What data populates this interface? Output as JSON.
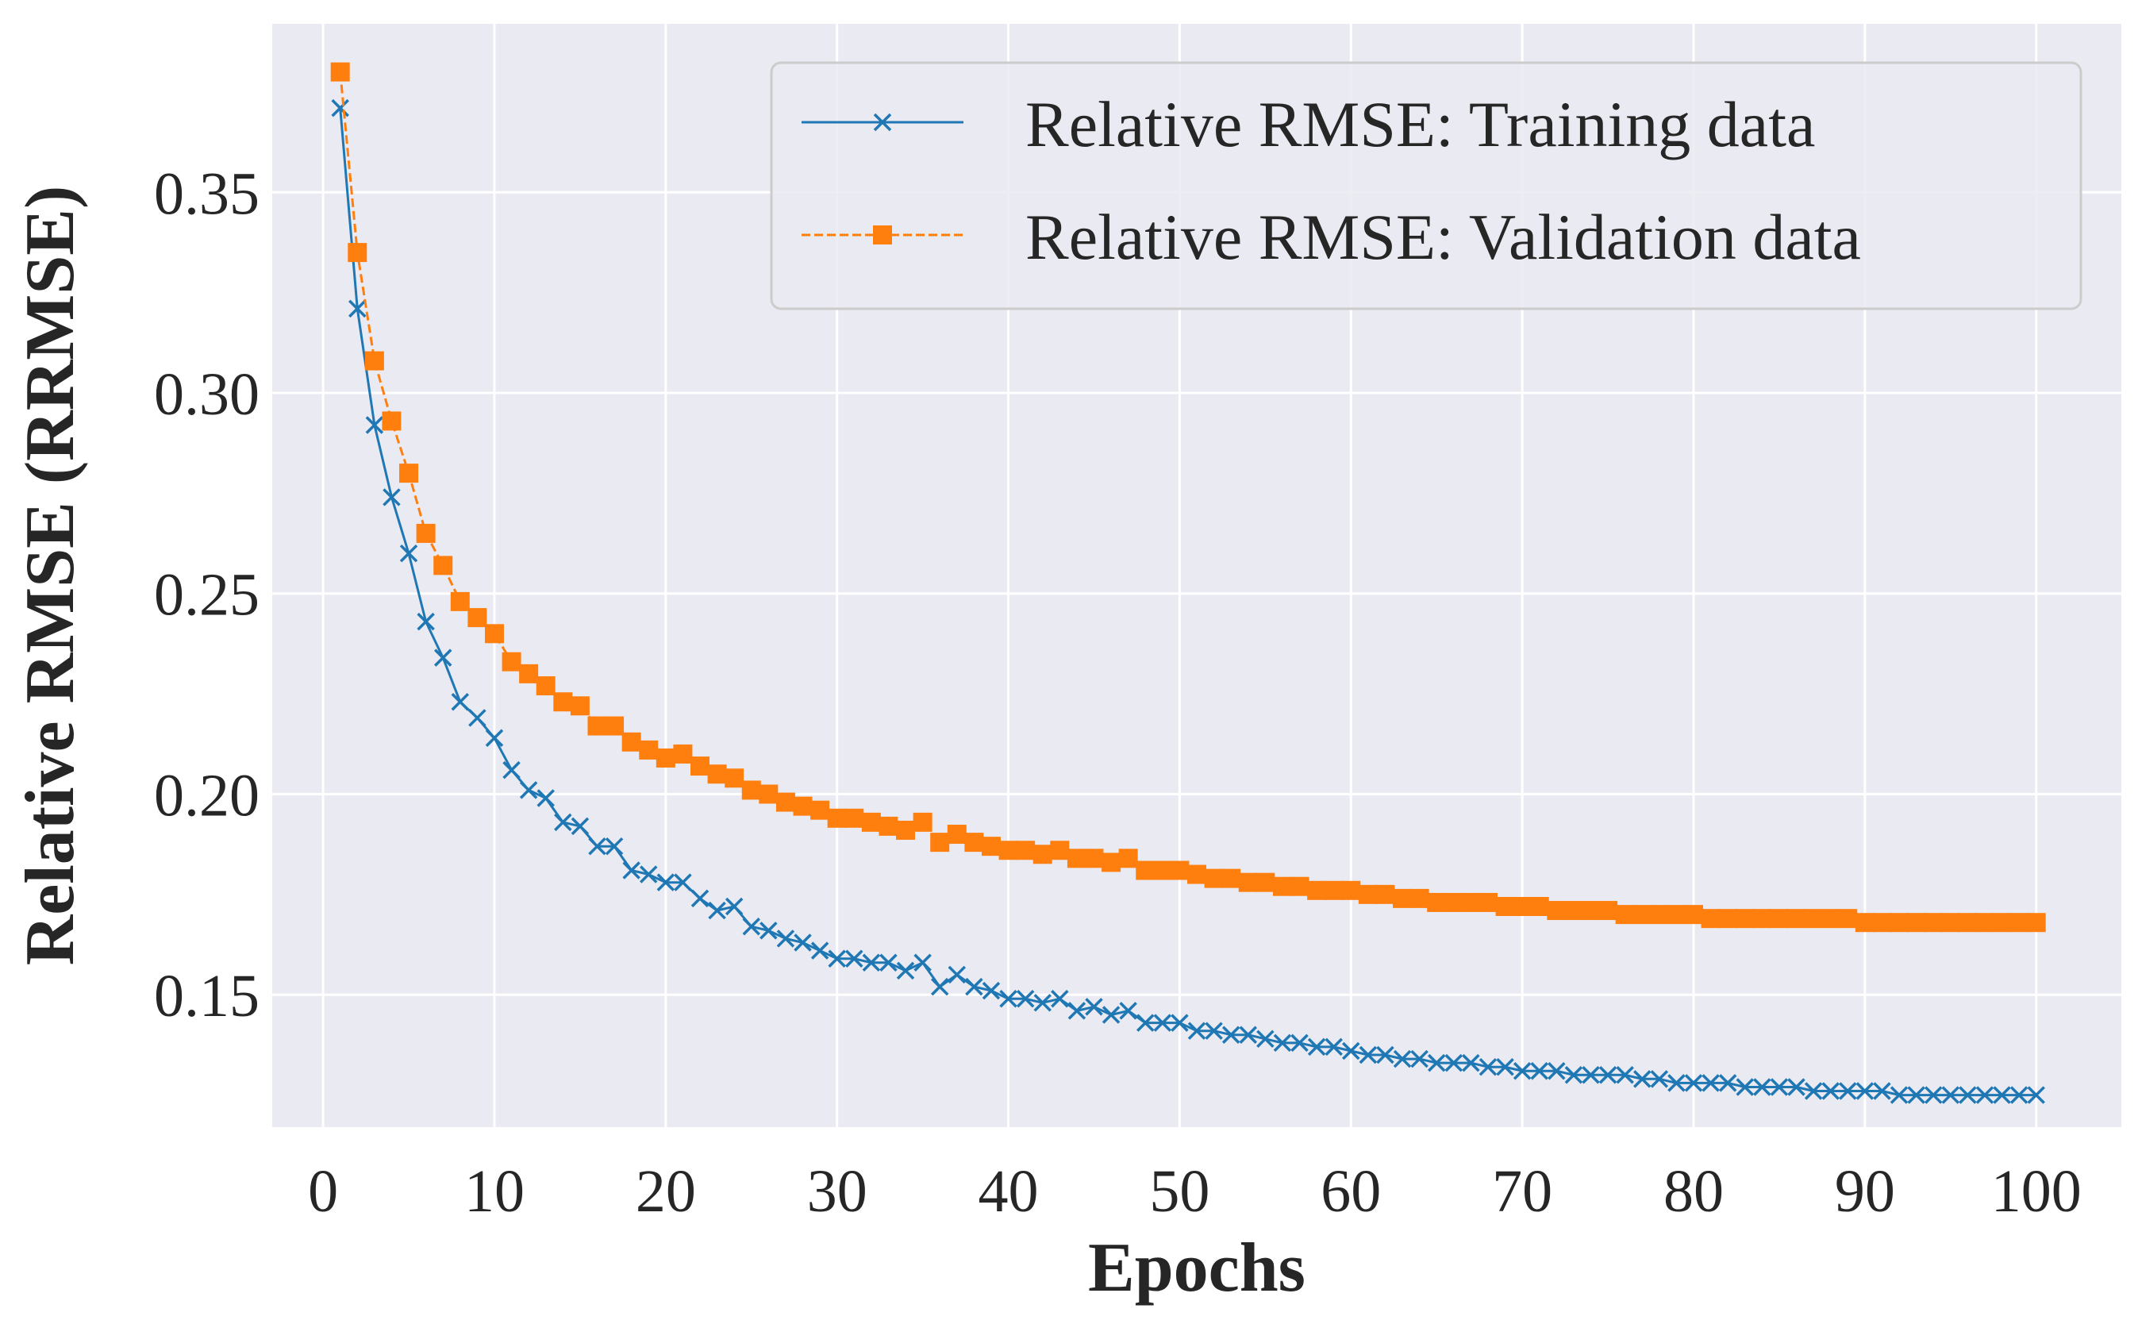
{
  "chart_data": {
    "type": "line",
    "title": "",
    "xlabel": "Epochs",
    "ylabel": "Relative RMSE (RRMSE)",
    "xlim": [
      -2.97,
      104.97
    ],
    "ylim": [
      0.117,
      0.392
    ],
    "xticks": [
      0,
      10,
      20,
      30,
      40,
      50,
      60,
      70,
      80,
      90,
      100
    ],
    "xtick_labels": [
      "0",
      "10",
      "20",
      "30",
      "40",
      "50",
      "60",
      "70",
      "80",
      "90",
      "100"
    ],
    "yticks": [
      0.15,
      0.2,
      0.25,
      0.3,
      0.35
    ],
    "ytick_labels": [
      "0.15",
      "0.20",
      "0.25",
      "0.30",
      "0.35"
    ],
    "grid": true,
    "background": "#eaeaf2",
    "legend_position": "top-right",
    "x": [
      1,
      2,
      3,
      4,
      5,
      6,
      7,
      8,
      9,
      10,
      11,
      12,
      13,
      14,
      15,
      16,
      17,
      18,
      19,
      20,
      21,
      22,
      23,
      24,
      25,
      26,
      27,
      28,
      29,
      30,
      31,
      32,
      33,
      34,
      35,
      36,
      37,
      38,
      39,
      40,
      41,
      42,
      43,
      44,
      45,
      46,
      47,
      48,
      49,
      50,
      51,
      52,
      53,
      54,
      55,
      56,
      57,
      58,
      59,
      60,
      61,
      62,
      63,
      64,
      65,
      66,
      67,
      68,
      69,
      70,
      71,
      72,
      73,
      74,
      75,
      76,
      77,
      78,
      79,
      80,
      81,
      82,
      83,
      84,
      85,
      86,
      87,
      88,
      89,
      90,
      91,
      92,
      93,
      94,
      95,
      96,
      97,
      98,
      99,
      100
    ],
    "series": [
      {
        "name": "Relative RMSE: Training data",
        "color": "#1f77b4",
        "line_style": "solid",
        "marker": "x",
        "values": [
          0.371,
          0.321,
          0.292,
          0.274,
          0.26,
          0.243,
          0.234,
          0.223,
          0.219,
          0.214,
          0.206,
          0.201,
          0.199,
          0.193,
          0.192,
          0.187,
          0.187,
          0.181,
          0.18,
          0.178,
          0.178,
          0.174,
          0.171,
          0.172,
          0.167,
          0.166,
          0.164,
          0.163,
          0.161,
          0.159,
          0.159,
          0.158,
          0.158,
          0.156,
          0.158,
          0.152,
          0.155,
          0.152,
          0.151,
          0.149,
          0.149,
          0.148,
          0.149,
          0.146,
          0.147,
          0.145,
          0.146,
          0.143,
          0.143,
          0.143,
          0.141,
          0.141,
          0.14,
          0.14,
          0.139,
          0.138,
          0.138,
          0.137,
          0.137,
          0.136,
          0.135,
          0.135,
          0.134,
          0.134,
          0.133,
          0.133,
          0.133,
          0.132,
          0.132,
          0.131,
          0.131,
          0.131,
          0.13,
          0.13,
          0.13,
          0.13,
          0.129,
          0.129,
          0.128,
          0.128,
          0.128,
          0.128,
          0.127,
          0.127,
          0.127,
          0.127,
          0.126,
          0.126,
          0.126,
          0.126,
          0.126,
          0.125,
          0.125,
          0.125,
          0.125,
          0.125,
          0.125,
          0.125,
          0.125,
          0.125
        ]
      },
      {
        "name": "Relative RMSE: Validation data",
        "color": "#ff7f0e",
        "line_style": "dashed",
        "marker": "s",
        "values": [
          0.38,
          0.335,
          0.308,
          0.293,
          0.28,
          0.265,
          0.257,
          0.248,
          0.244,
          0.24,
          0.233,
          0.23,
          0.227,
          0.223,
          0.222,
          0.217,
          0.217,
          0.213,
          0.211,
          0.209,
          0.21,
          0.207,
          0.205,
          0.204,
          0.201,
          0.2,
          0.198,
          0.197,
          0.196,
          0.194,
          0.194,
          0.193,
          0.192,
          0.191,
          0.193,
          0.188,
          0.19,
          0.188,
          0.187,
          0.186,
          0.186,
          0.185,
          0.186,
          0.184,
          0.184,
          0.183,
          0.184,
          0.181,
          0.181,
          0.181,
          0.18,
          0.179,
          0.179,
          0.178,
          0.178,
          0.177,
          0.177,
          0.176,
          0.176,
          0.176,
          0.175,
          0.175,
          0.174,
          0.174,
          0.173,
          0.173,
          0.173,
          0.173,
          0.172,
          0.172,
          0.172,
          0.171,
          0.171,
          0.171,
          0.171,
          0.17,
          0.17,
          0.17,
          0.17,
          0.17,
          0.169,
          0.169,
          0.169,
          0.169,
          0.169,
          0.169,
          0.169,
          0.169,
          0.169,
          0.168,
          0.168,
          0.168,
          0.168,
          0.168,
          0.168,
          0.168,
          0.168,
          0.168,
          0.168,
          0.168
        ]
      }
    ]
  }
}
